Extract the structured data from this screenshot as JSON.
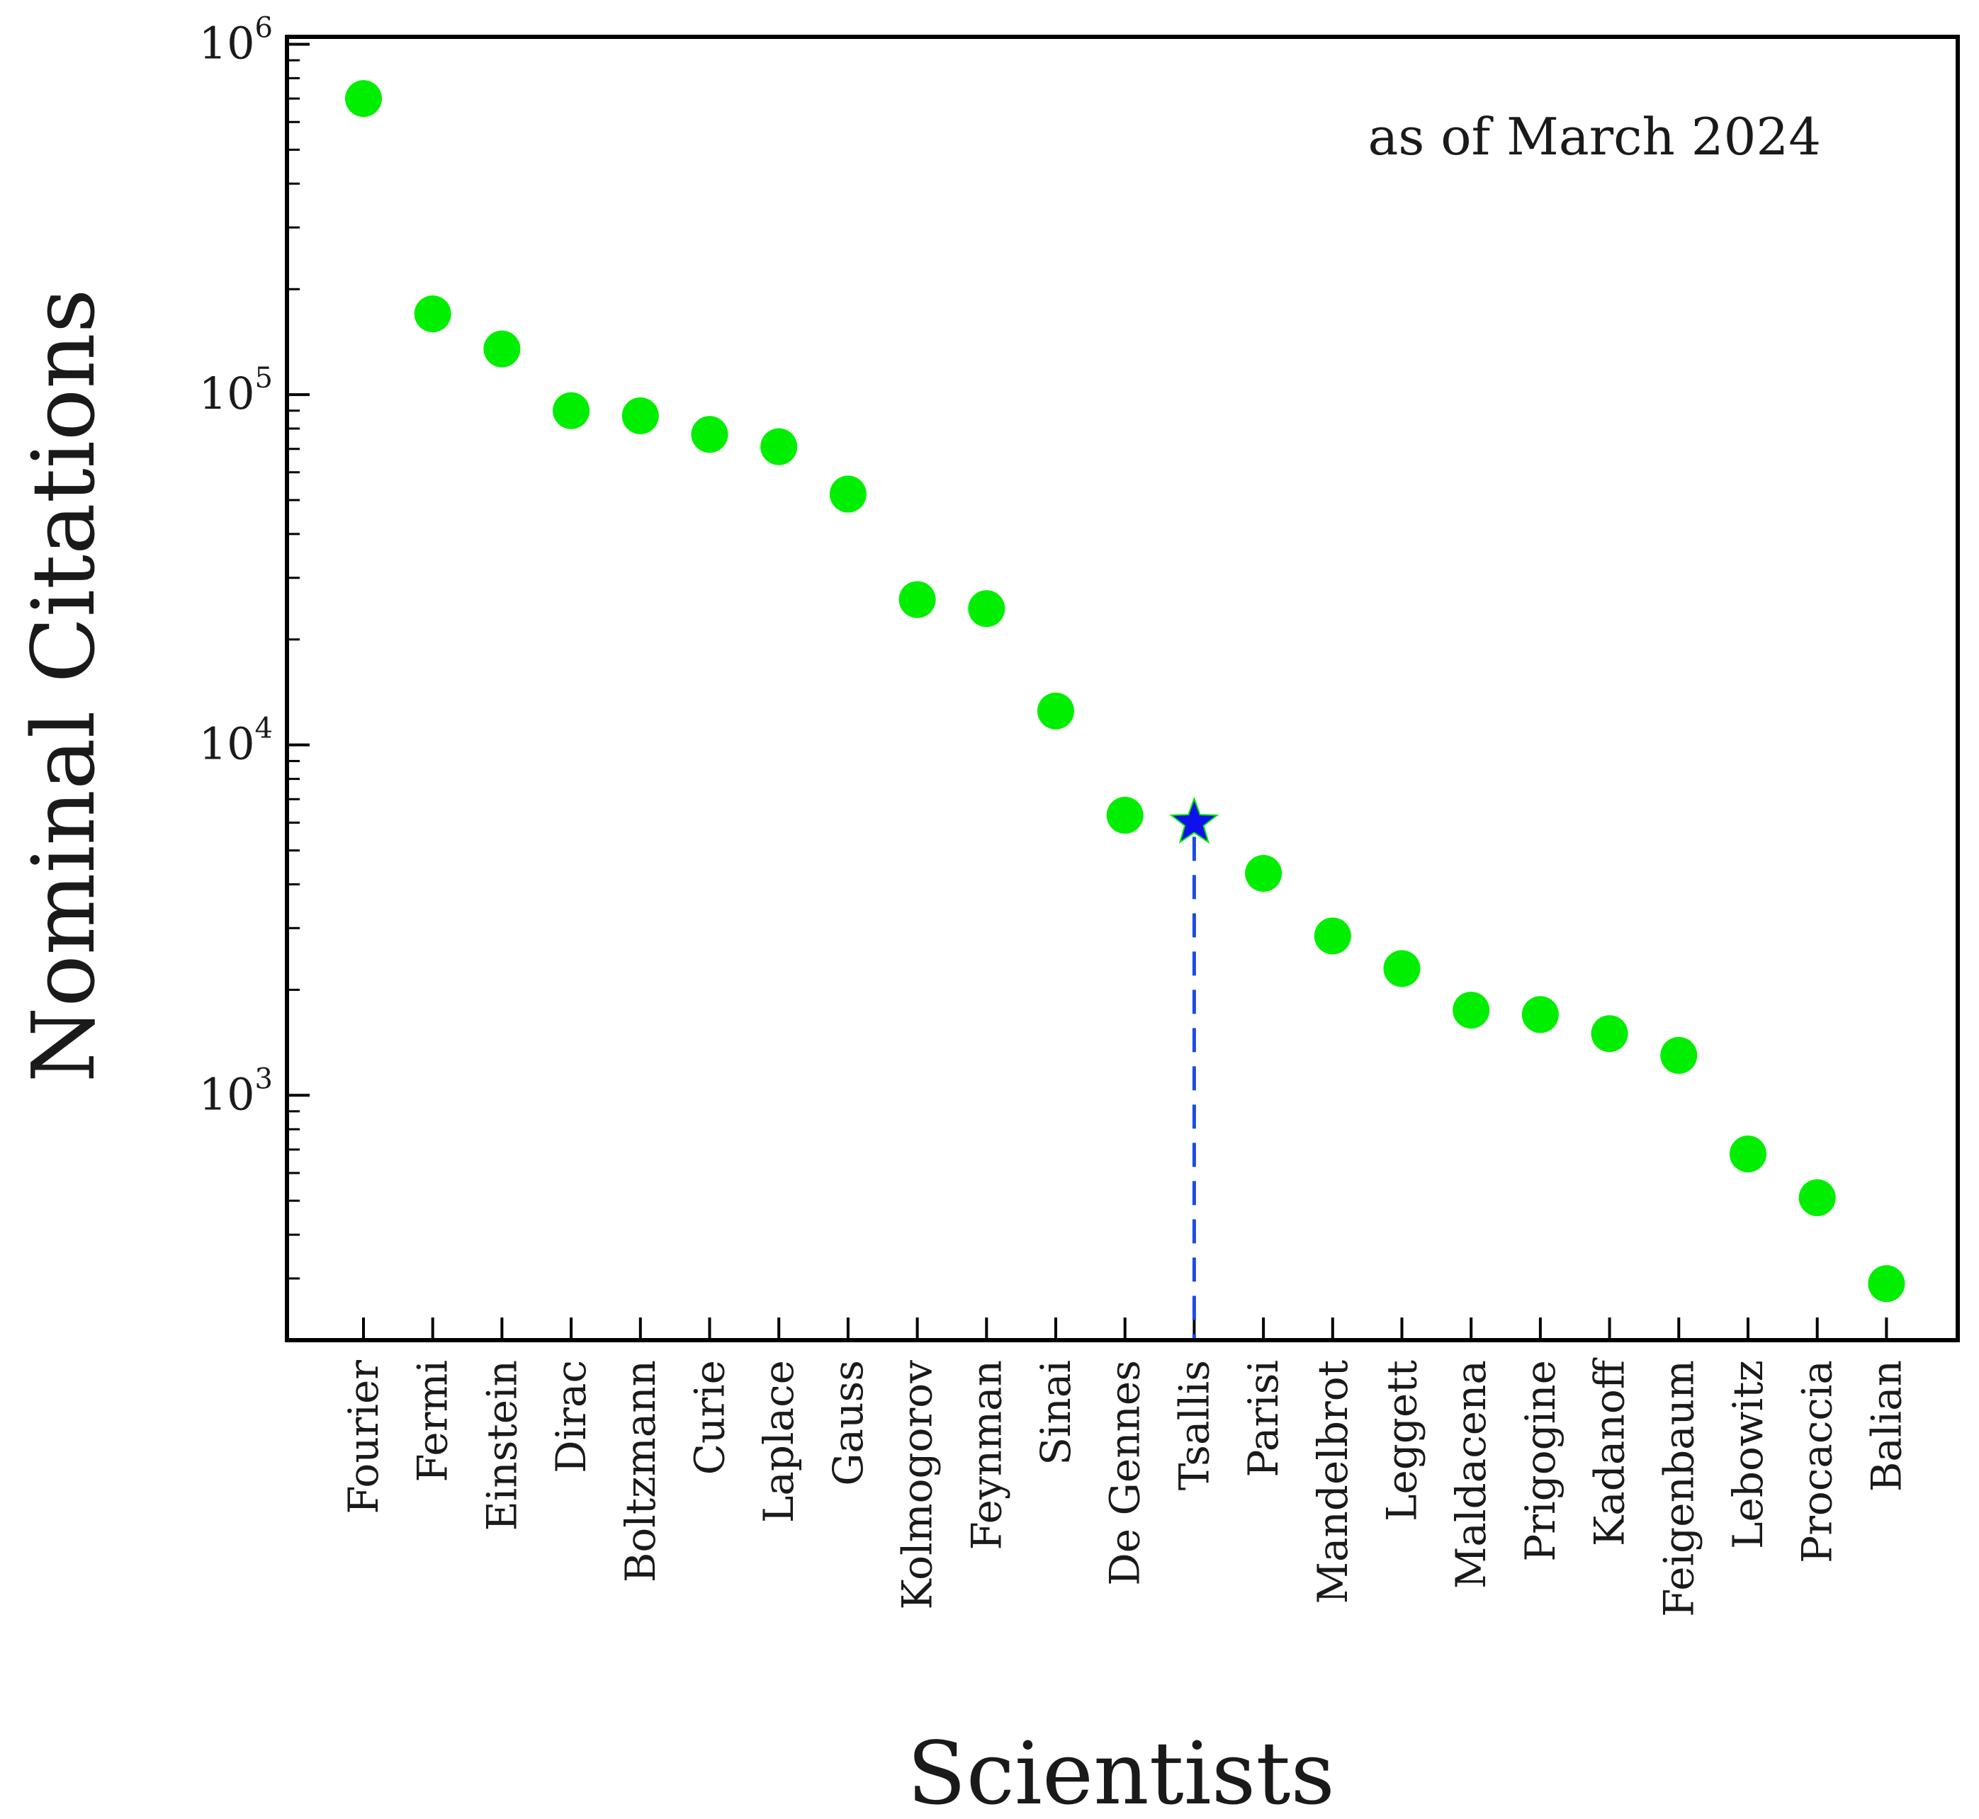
{
  "chart_data": {
    "type": "scatter",
    "xlabel": "Scientists",
    "ylabel": "Nominal Citations",
    "yscale": "log",
    "ylim": [
      200,
      1050000
    ],
    "annotation": "as of March 2024",
    "categories": [
      "Fourier",
      "Fermi",
      "Einstein",
      "Dirac",
      "Boltzmann",
      "Curie",
      "Laplace",
      "Gauss",
      "Kolmogorov",
      "Feynman",
      "Sinai",
      "De Gennes",
      "Tsallis",
      "Parisi",
      "Mandelbrot",
      "Leggett",
      "Maldacena",
      "Prigogine",
      "Kadanoff",
      "Feigenbaum",
      "Lebowitz",
      "Procaccia",
      "Balian"
    ],
    "values": [
      700000,
      170000,
      135000,
      90000,
      87000,
      77000,
      71000,
      52000,
      26000,
      24500,
      12500,
      6300,
      6000,
      4300,
      2850,
      2300,
      1750,
      1700,
      1500,
      1300,
      680,
      510,
      290
    ],
    "highlight": {
      "category": "Tsallis",
      "marker": "star",
      "color": "#1010ee",
      "guide": "dashed-vertical",
      "guide_color": "#1a4ce6"
    },
    "marker_color": "#00ee00",
    "y_ticks": [
      {
        "value": 1000,
        "base": "10",
        "exp": "3"
      },
      {
        "value": 10000,
        "base": "10",
        "exp": "4"
      },
      {
        "value": 100000,
        "base": "10",
        "exp": "5"
      },
      {
        "value": 1000000,
        "base": "10",
        "exp": "6"
      }
    ]
  }
}
